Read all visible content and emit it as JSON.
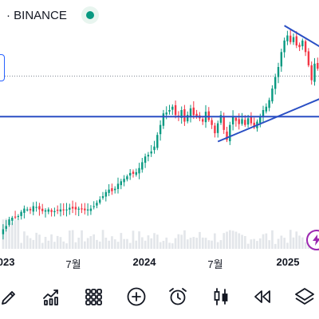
{
  "header": {
    "symbol": "· BINANCE",
    "live_color": "#089981"
  },
  "colors": {
    "up": "#089981",
    "down": "#f23645",
    "trendline": "#2a4fc4",
    "price_line": "#7c8591",
    "volume": "#e3e6ea",
    "flash": "#9c27b0"
  },
  "chart_data": {
    "type": "candlestick",
    "x_axis_labels": [
      "2023",
      "7월",
      "2024",
      "7월",
      "2025"
    ],
    "series": [
      {
        "type": "candlestick",
        "description": "price candles, estimated relative values (0-100 scale)"
      },
      {
        "type": "volume"
      }
    ],
    "closes": [
      12,
      16,
      24,
      26,
      27,
      28,
      33,
      37,
      36,
      35,
      40,
      39,
      36,
      34,
      35,
      36,
      33,
      34,
      35,
      36,
      35,
      36,
      38,
      37,
      36,
      37,
      36,
      35,
      36,
      37,
      40,
      44,
      48,
      52,
      57,
      60,
      58,
      61,
      67,
      70,
      73,
      76,
      80,
      79,
      81,
      86,
      93,
      100,
      102,
      106,
      112,
      126,
      138,
      152,
      153,
      156,
      160,
      150,
      148,
      156,
      142,
      150,
      158,
      150,
      148,
      146,
      142,
      154,
      144,
      138,
      128,
      140,
      150,
      132,
      120,
      138,
      148,
      143,
      139,
      145,
      138,
      146,
      140,
      135,
      142,
      148,
      156,
      160,
      168,
      182,
      196,
      208,
      226,
      240,
      246,
      238,
      244,
      234,
      232,
      240,
      226,
      210,
      192,
      212,
      206,
      216
    ],
    "trendlines": [
      {
        "type": "horizontal",
        "value": 148
      },
      {
        "type": "rising",
        "from_candle": 71,
        "from_value": 118,
        "to_candle": 105,
        "to_value": 170
      },
      {
        "type": "falling",
        "from_candle": 93,
        "from_value": 258,
        "to_candle": 105,
        "to_value": 232
      }
    ],
    "current_price_line": 197
  },
  "toolbar": {
    "icons": [
      "pen-icon",
      "indicators-icon",
      "grid-icon",
      "plus-icon",
      "alarm-icon",
      "candles-icon",
      "rewind-icon",
      "layers-icon"
    ]
  }
}
